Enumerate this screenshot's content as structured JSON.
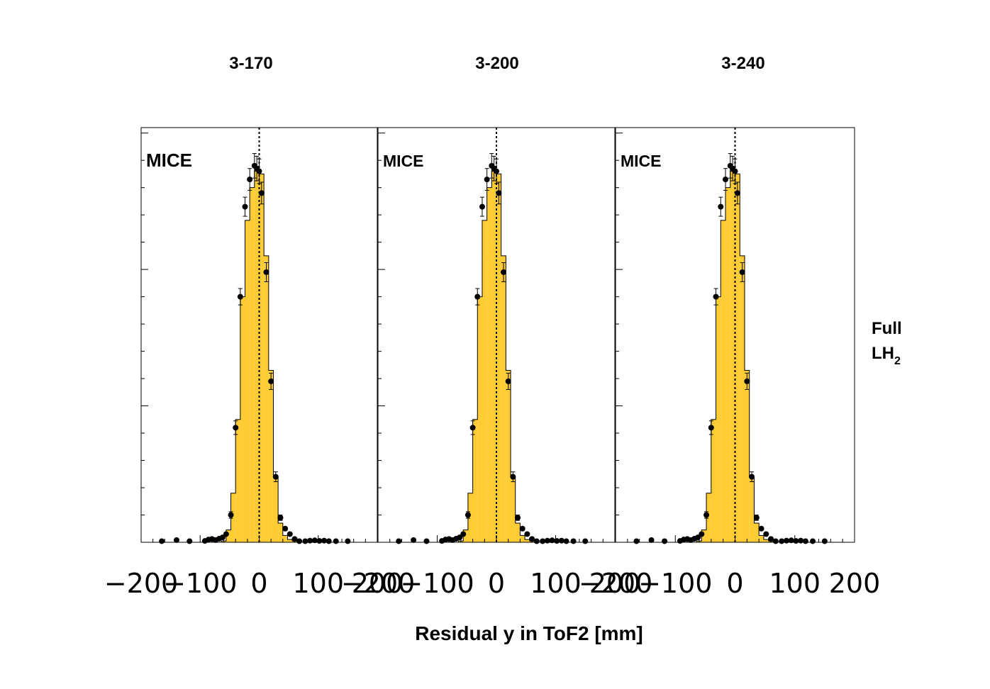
{
  "figure": {
    "xlabel": "Residual y in ToF2 [mm]",
    "side_label": {
      "main": "Full",
      "line2": "LH",
      "subscript": "2"
    },
    "mice_label": "MICE"
  },
  "colors": {
    "histogram_fill": "#FFCC33",
    "histogram_edge": "#000000",
    "data_points": "#000000",
    "reference_line": "#000000"
  },
  "chart_data": [
    {
      "type": "bar",
      "title": "3-170",
      "xlabel": "Residual y in ToF2 [mm]",
      "ylabel": "",
      "xlim": [
        -200,
        200
      ],
      "ylim": [
        0,
        1.52
      ],
      "x_ticks": [
        "−200",
        "−100",
        "0",
        "100",
        "200"
      ],
      "reference_line_x": 0,
      "bin_width": 8,
      "series": [
        {
          "kind": "histogram",
          "bin_centers": [
            -60,
            -52,
            -44,
            -36,
            -28,
            -20,
            -12,
            -4,
            4,
            12,
            20,
            28,
            36,
            44,
            52,
            60
          ],
          "values": [
            0.005,
            0.045,
            0.18,
            0.45,
            0.9,
            1.18,
            1.3,
            1.36,
            1.35,
            1.05,
            0.63,
            0.24,
            0.07,
            0.025,
            0.01,
            0.005
          ]
        },
        {
          "kind": "data_points",
          "x": [
            -165,
            -140,
            -118,
            -92,
            -86,
            -80,
            -74,
            -68,
            -62,
            -56,
            -48,
            -40,
            -32,
            -24,
            -16,
            -8,
            -4,
            0,
            4,
            12,
            20,
            28,
            36,
            44,
            52,
            60,
            68,
            78,
            86,
            94,
            102,
            110,
            118,
            130,
            150
          ],
          "y": [
            0.004,
            0.008,
            0.004,
            0.005,
            0.01,
            0.012,
            0.008,
            0.013,
            0.018,
            0.03,
            0.1,
            0.42,
            0.9,
            1.23,
            1.33,
            1.38,
            1.37,
            1.36,
            1.28,
            0.99,
            0.59,
            0.24,
            0.09,
            0.05,
            0.03,
            0.012,
            0.004,
            0.004,
            0.006,
            0.007,
            0.005,
            0.006,
            0.004,
            0.004,
            0.004
          ],
          "err": [
            0.005,
            0.005,
            0.005,
            0.005,
            0.005,
            0.005,
            0.005,
            0.005,
            0.006,
            0.008,
            0.012,
            0.025,
            0.03,
            0.035,
            0.04,
            0.045,
            0.045,
            0.045,
            0.04,
            0.035,
            0.03,
            0.018,
            0.01,
            0.008,
            0.006,
            0.005,
            0.005,
            0.005,
            0.005,
            0.005,
            0.005,
            0.005,
            0.005,
            0.005,
            0.005
          ]
        }
      ]
    },
    {
      "type": "bar",
      "title": "3-200",
      "xlabel": "Residual y in ToF2 [mm]",
      "ylabel": "",
      "xlim": [
        -200,
        200
      ],
      "ylim": [
        0,
        1.52
      ],
      "x_ticks": [
        "−200",
        "−100",
        "0",
        "100",
        "200"
      ],
      "reference_line_x": 0,
      "bin_width": 8,
      "series": [
        {
          "kind": "histogram",
          "bin_centers": [
            -60,
            -52,
            -44,
            -36,
            -28,
            -20,
            -12,
            -4,
            4,
            12,
            20,
            28,
            36,
            44,
            52,
            60
          ],
          "values": [
            0.005,
            0.045,
            0.18,
            0.45,
            0.9,
            1.18,
            1.3,
            1.36,
            1.35,
            1.05,
            0.63,
            0.24,
            0.07,
            0.025,
            0.01,
            0.005
          ]
        },
        {
          "kind": "data_points",
          "x": [
            -165,
            -140,
            -118,
            -92,
            -86,
            -80,
            -74,
            -68,
            -62,
            -56,
            -48,
            -40,
            -32,
            -24,
            -16,
            -8,
            -4,
            0,
            4,
            12,
            20,
            28,
            36,
            44,
            52,
            60,
            68,
            78,
            86,
            94,
            102,
            110,
            118,
            130,
            150
          ],
          "y": [
            0.004,
            0.008,
            0.004,
            0.005,
            0.01,
            0.012,
            0.008,
            0.013,
            0.018,
            0.03,
            0.1,
            0.42,
            0.9,
            1.23,
            1.33,
            1.38,
            1.37,
            1.36,
            1.28,
            0.99,
            0.59,
            0.24,
            0.09,
            0.05,
            0.03,
            0.012,
            0.004,
            0.004,
            0.006,
            0.007,
            0.005,
            0.006,
            0.004,
            0.004,
            0.004
          ],
          "err": [
            0.005,
            0.005,
            0.005,
            0.005,
            0.005,
            0.005,
            0.005,
            0.005,
            0.006,
            0.008,
            0.012,
            0.025,
            0.03,
            0.035,
            0.04,
            0.045,
            0.045,
            0.045,
            0.04,
            0.035,
            0.03,
            0.018,
            0.01,
            0.008,
            0.006,
            0.005,
            0.005,
            0.005,
            0.005,
            0.005,
            0.005,
            0.005,
            0.005,
            0.005,
            0.005
          ]
        }
      ]
    },
    {
      "type": "bar",
      "title": "3-240",
      "xlabel": "Residual y in ToF2 [mm]",
      "ylabel": "",
      "xlim": [
        -200,
        200
      ],
      "ylim": [
        0,
        1.52
      ],
      "x_ticks": [
        "−200",
        "−100",
        "0",
        "100",
        "200"
      ],
      "reference_line_x": 0,
      "bin_width": 8,
      "series": [
        {
          "kind": "histogram",
          "bin_centers": [
            -60,
            -52,
            -44,
            -36,
            -28,
            -20,
            -12,
            -4,
            4,
            12,
            20,
            28,
            36,
            44,
            52,
            60
          ],
          "values": [
            0.005,
            0.045,
            0.18,
            0.45,
            0.9,
            1.18,
            1.3,
            1.36,
            1.35,
            1.05,
            0.63,
            0.24,
            0.07,
            0.025,
            0.01,
            0.005
          ]
        },
        {
          "kind": "data_points",
          "x": [
            -165,
            -140,
            -118,
            -92,
            -86,
            -80,
            -74,
            -68,
            -62,
            -56,
            -48,
            -40,
            -32,
            -24,
            -16,
            -8,
            -4,
            0,
            4,
            12,
            20,
            28,
            36,
            44,
            52,
            60,
            68,
            78,
            86,
            94,
            102,
            110,
            118,
            130,
            150
          ],
          "y": [
            0.004,
            0.008,
            0.004,
            0.005,
            0.01,
            0.012,
            0.008,
            0.013,
            0.018,
            0.03,
            0.1,
            0.42,
            0.9,
            1.23,
            1.33,
            1.38,
            1.37,
            1.36,
            1.28,
            0.99,
            0.59,
            0.24,
            0.09,
            0.05,
            0.03,
            0.012,
            0.004,
            0.004,
            0.006,
            0.007,
            0.005,
            0.006,
            0.004,
            0.004,
            0.004
          ],
          "err": [
            0.005,
            0.005,
            0.005,
            0.005,
            0.005,
            0.005,
            0.005,
            0.005,
            0.006,
            0.008,
            0.012,
            0.025,
            0.03,
            0.035,
            0.04,
            0.045,
            0.045,
            0.045,
            0.04,
            0.035,
            0.03,
            0.018,
            0.01,
            0.008,
            0.006,
            0.005,
            0.005,
            0.005,
            0.005,
            0.005,
            0.005,
            0.005,
            0.005,
            0.005,
            0.005
          ]
        }
      ]
    }
  ]
}
